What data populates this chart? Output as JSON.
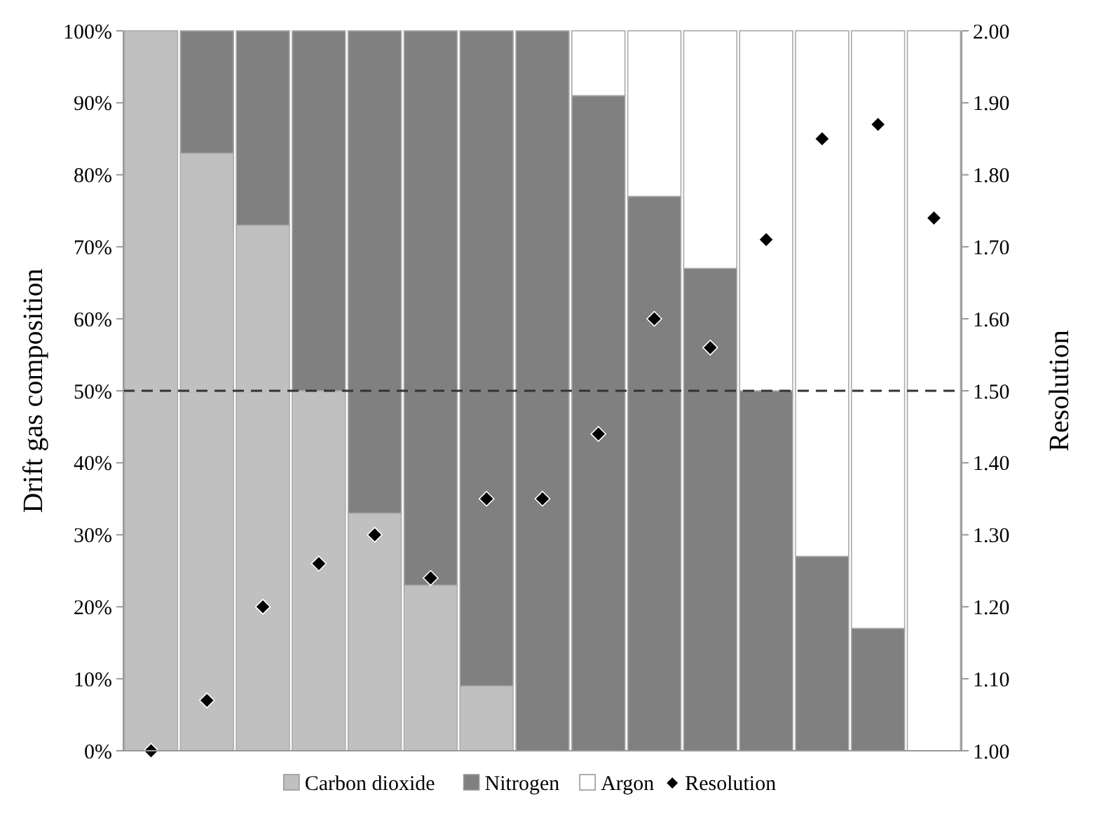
{
  "chart_data": {
    "type": "bar",
    "stacked": true,
    "ylabel": "Drift gas composition",
    "y2label": "Resolution",
    "categories": [
      null,
      null,
      null,
      null,
      null,
      null,
      null,
      null,
      null,
      null,
      null,
      null,
      null,
      null,
      null
    ],
    "series": [
      {
        "name": "Carbon dioxide",
        "color": "#c0c0c0",
        "values": [
          100,
          83,
          73,
          50,
          33,
          23,
          9,
          0,
          0,
          0,
          0,
          0,
          0,
          0,
          0
        ]
      },
      {
        "name": "Nitrogen",
        "color": "#808080",
        "values": [
          0,
          17,
          27,
          50,
          67,
          77,
          91,
          100,
          91,
          77,
          67,
          50,
          27,
          17,
          0
        ]
      },
      {
        "name": "Argon",
        "color": "#ffffff",
        "values": [
          0,
          0,
          0,
          0,
          0,
          0,
          0,
          0,
          9,
          23,
          33,
          50,
          73,
          83,
          100
        ]
      },
      {
        "name": "Resolution",
        "type": "scatter",
        "axis": "y2",
        "marker": "diamond",
        "color": "#000000",
        "values": [
          1.0,
          1.07,
          1.2,
          1.26,
          1.3,
          1.24,
          1.35,
          1.35,
          1.44,
          1.6,
          1.56,
          1.71,
          1.85,
          1.87,
          1.74
        ]
      }
    ],
    "ylim": [
      0,
      100
    ],
    "yticks": [
      {
        "value": 0,
        "label": "0%"
      },
      {
        "value": 10,
        "label": "10%"
      },
      {
        "value": 20,
        "label": "20%"
      },
      {
        "value": 30,
        "label": "30%"
      },
      {
        "value": 40,
        "label": "40%"
      },
      {
        "value": 50,
        "label": "50%"
      },
      {
        "value": 60,
        "label": "60%"
      },
      {
        "value": 70,
        "label": "70%"
      },
      {
        "value": 80,
        "label": "80%"
      },
      {
        "value": 90,
        "label": "90%"
      },
      {
        "value": 100,
        "label": "100%"
      }
    ],
    "y2lim": [
      1,
      2
    ],
    "y2ticks": [
      {
        "value": 1,
        "label": "1.00"
      },
      {
        "value": 1.1,
        "label": "1.10"
      },
      {
        "value": 1.2,
        "label": "1.20"
      },
      {
        "value": 1.3,
        "label": "1.30"
      },
      {
        "value": 1.4,
        "label": "1.40"
      },
      {
        "value": 1.5,
        "label": "1.50"
      },
      {
        "value": 1.6,
        "label": "1.60"
      },
      {
        "value": 1.7,
        "label": "1.70"
      },
      {
        "value": 1.8,
        "label": "1.80"
      },
      {
        "value": 1.9,
        "label": "1.90"
      },
      {
        "value": 2,
        "label": "2.00"
      }
    ],
    "ref_lines": [
      {
        "axis": "y",
        "value": 50,
        "line_style": "dashed",
        "color": "#333333"
      }
    ],
    "grid": false,
    "legend": "bottom"
  }
}
